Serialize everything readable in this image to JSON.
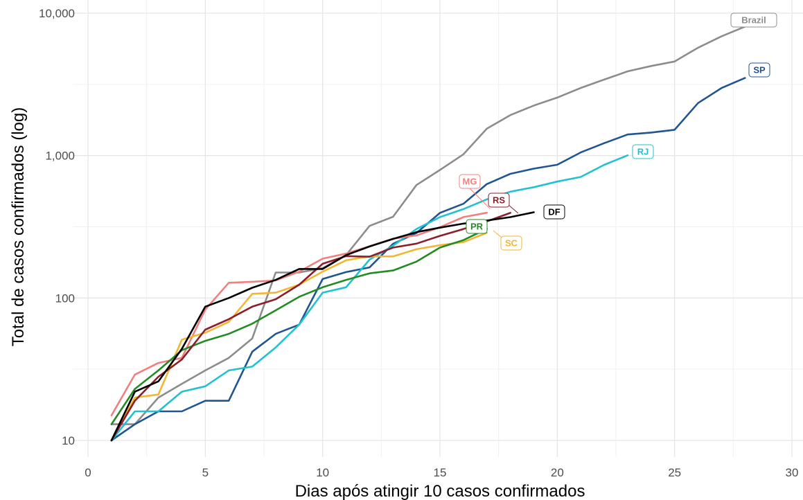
{
  "chart_data": {
    "type": "line",
    "title": "",
    "xlabel": "Dias após atingir 10 casos confirmados",
    "ylabel": "Total de casos confirmados (log)",
    "x_scale": "linear",
    "y_scale": "log10",
    "xlim": [
      0,
      30
    ],
    "ylim": [
      10,
      10000
    ],
    "x_ticks": [
      0,
      5,
      10,
      15,
      20,
      25,
      30
    ],
    "x_tick_labels": [
      "0",
      "5",
      "10",
      "15",
      "20",
      "25",
      "30"
    ],
    "y_ticks": [
      10,
      100,
      1000,
      10000
    ],
    "y_tick_labels": [
      "10",
      "100",
      "1,000",
      "10,000"
    ],
    "grid": true,
    "legend": "direct labels",
    "series": [
      {
        "name": "Brazil",
        "color": "#8c8c8c",
        "label_color": "#8c8c8c",
        "x": [
          1,
          2,
          3,
          4,
          5,
          6,
          7,
          8,
          9,
          10,
          11,
          12,
          13,
          14,
          15,
          16,
          17,
          18,
          19,
          20,
          21,
          22,
          23,
          24,
          25,
          26,
          27,
          28
        ],
        "y": [
          13,
          13,
          20,
          25,
          31,
          38,
          52,
          151,
          151,
          162,
          200,
          321,
          372,
          621,
          793,
          1021,
          1546,
          1924,
          2247,
          2554,
          2985,
          3417,
          3904,
          4256,
          4579,
          5717,
          6880,
          8044
        ]
      },
      {
        "name": "SP",
        "color": "#1f5591",
        "label_color": "#1f5591",
        "x": [
          1,
          2,
          3,
          4,
          5,
          6,
          7,
          8,
          9,
          10,
          11,
          12,
          13,
          14,
          15,
          16,
          17,
          18,
          19,
          20,
          21,
          22,
          23,
          24,
          25,
          26,
          27,
          28
        ],
        "y": [
          10,
          13,
          16,
          16,
          19,
          19,
          42,
          56,
          65,
          136,
          152,
          164,
          240,
          286,
          396,
          459,
          631,
          745,
          810,
          862,
          1052,
          1223,
          1406,
          1451,
          1517,
          2339,
          2981,
          3506
        ]
      },
      {
        "name": "RJ",
        "color": "#20c2cf",
        "label_color": "#20c2cf",
        "x": [
          1,
          2,
          3,
          4,
          5,
          6,
          7,
          8,
          9,
          10,
          11,
          12,
          13,
          14,
          15,
          16,
          17,
          18,
          19,
          20,
          21,
          22,
          23
        ],
        "y": [
          10,
          16,
          16,
          22,
          24,
          31,
          33,
          45,
          65,
          109,
          119,
          186,
          233,
          305,
          370,
          421,
          493,
          558,
          600,
          657,
          708,
          861,
          1004
        ]
      },
      {
        "name": "MG",
        "color": "#f08080",
        "label_color": "#f08080",
        "x": [
          1,
          2,
          3,
          4,
          5,
          6,
          7,
          8,
          9,
          10,
          11,
          12,
          13,
          14,
          15,
          16,
          17
        ],
        "y": [
          15,
          29,
          35,
          38,
          83,
          128,
          130,
          133,
          153,
          189,
          205,
          231,
          261,
          275,
          314,
          370,
          397
        ]
      },
      {
        "name": "RS",
        "color": "#8b1e2a",
        "label_color": "#8b1e2a",
        "x": [
          1,
          2,
          3,
          4,
          5,
          6,
          7,
          8,
          9,
          10,
          11,
          12,
          13,
          14,
          15,
          16,
          17,
          18
        ],
        "y": [
          10,
          19,
          28,
          37,
          60,
          71,
          87,
          98,
          124,
          174,
          197,
          195,
          226,
          241,
          273,
          305,
          345,
          396
        ]
      },
      {
        "name": "DF",
        "color": "#000000",
        "label_color": "#000000",
        "x": [
          1,
          2,
          3,
          4,
          5,
          6,
          7,
          8,
          9,
          10,
          11,
          12,
          13,
          14,
          15,
          16,
          17,
          18,
          19
        ],
        "y": [
          10,
          22,
          26,
          44,
          87,
          100,
          118,
          134,
          160,
          160,
          200,
          230,
          260,
          290,
          312,
          333,
          350,
          370,
          400
        ]
      },
      {
        "name": "PR",
        "color": "#228b22",
        "label_color": "#228b22",
        "x": [
          1,
          2,
          3,
          4,
          5,
          6,
          7,
          8,
          9,
          10,
          11,
          12,
          13,
          14,
          15,
          16,
          17
        ],
        "y": [
          13,
          23,
          31,
          43,
          50,
          56,
          66,
          82,
          102,
          119,
          134,
          149,
          156,
          180,
          226,
          255,
          306
        ]
      },
      {
        "name": "SC",
        "color": "#f2b632",
        "label_color": "#f2b632",
        "x": [
          1,
          2,
          3,
          4,
          5,
          6,
          7,
          8,
          9,
          10,
          11,
          12,
          13,
          14,
          15,
          16,
          17
        ],
        "y": [
          10,
          20,
          21,
          51,
          57,
          68,
          107,
          109,
          124,
          153,
          184,
          196,
          196,
          220,
          235,
          247,
          287
        ]
      }
    ]
  }
}
